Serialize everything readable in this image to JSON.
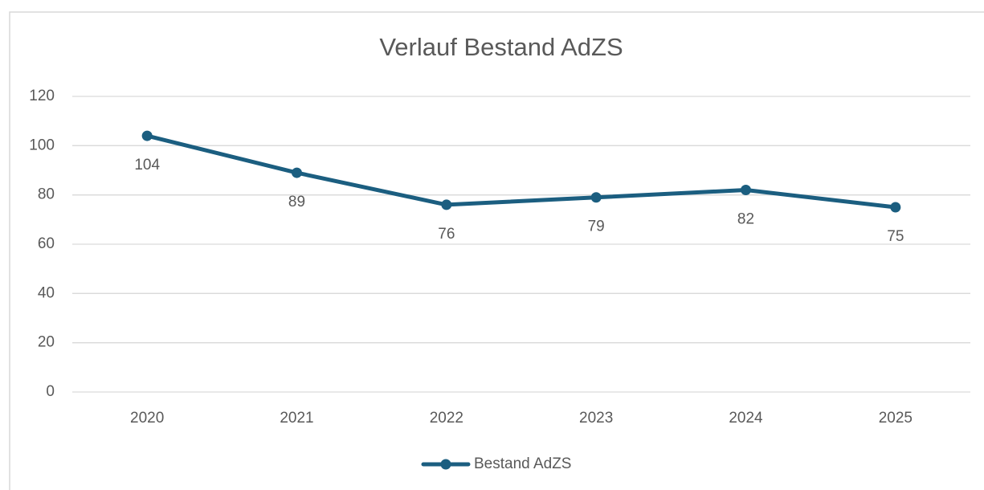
{
  "chart_data": {
    "type": "line",
    "title": "Verlauf Bestand AdZS",
    "categories": [
      "2020",
      "2021",
      "2022",
      "2023",
      "2024",
      "2025"
    ],
    "series": [
      {
        "name": "Bestand AdZS",
        "color": "#1b5e80",
        "values": [
          104,
          89,
          76,
          79,
          82,
          75
        ]
      }
    ],
    "ylim": [
      0,
      120
    ],
    "yticks": [
      0,
      20,
      40,
      60,
      80,
      100,
      120
    ],
    "grid": true,
    "legend": "bottom"
  }
}
